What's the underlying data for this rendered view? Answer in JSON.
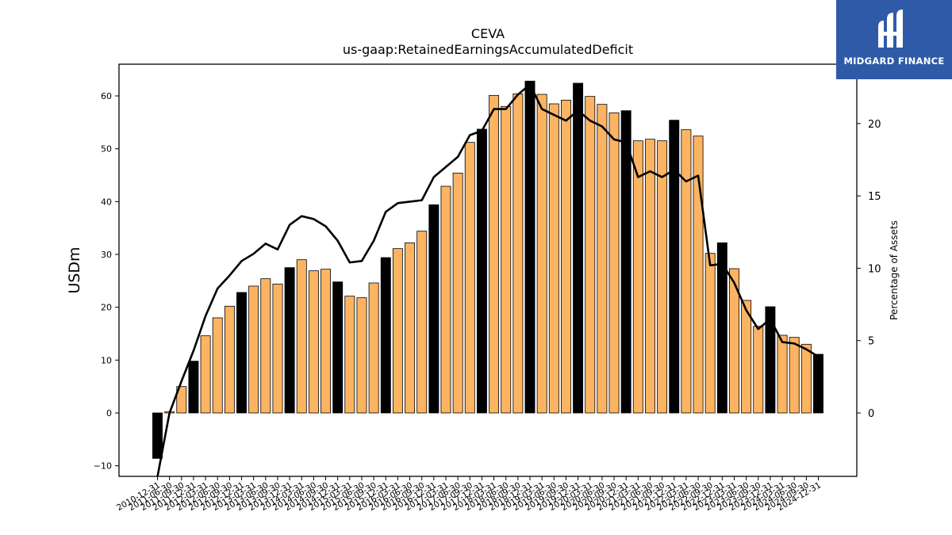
{
  "logo": {
    "text": "MIDGARD FINANCE",
    "icon": "midgard-logo-icon",
    "bg_color": "#2f5aa8"
  },
  "chart_data": {
    "type": "bar",
    "title": "CEVA",
    "subtitle": "us-gaap:RetainedEarningsAccumulatedDeficit",
    "ylabel": "USDm",
    "y2label": "Percentage of Assets",
    "ylim": [
      -12,
      66
    ],
    "y2lim": [
      -4.38,
      24.1
    ],
    "yticks": [
      -10,
      0,
      10,
      20,
      30,
      40,
      50,
      60
    ],
    "y2ticks": [
      0,
      5,
      10,
      15,
      20
    ],
    "colors": {
      "bar": "#fdb462",
      "bar_year_end": "#000000",
      "line": "#000000"
    },
    "categories": [
      "2010-12-31",
      "2011-06-30",
      "2011-09-30",
      "2011-12-31",
      "2012-03-31",
      "2012-06-30",
      "2012-09-30",
      "2012-12-31",
      "2013-03-31",
      "2013-06-30",
      "2013-09-30",
      "2013-12-31",
      "2014-03-31",
      "2014-06-30",
      "2014-09-30",
      "2014-12-31",
      "2015-03-31",
      "2015-06-30",
      "2015-09-30",
      "2015-12-31",
      "2016-03-31",
      "2016-06-30",
      "2016-09-30",
      "2016-12-31",
      "2017-03-31",
      "2017-06-30",
      "2017-09-30",
      "2017-12-31",
      "2018-03-31",
      "2018-06-30",
      "2018-09-30",
      "2018-12-31",
      "2019-03-31",
      "2019-06-30",
      "2019-09-30",
      "2019-12-31",
      "2020-03-31",
      "2020-06-30",
      "2020-09-30",
      "2020-12-31",
      "2021-03-31",
      "2021-06-30",
      "2021-09-30",
      "2021-12-31",
      "2022-03-31",
      "2022-06-30",
      "2022-09-30",
      "2022-12-31",
      "2023-03-31",
      "2023-06-30",
      "2023-09-30",
      "2023-12-31",
      "2024-03-31",
      "2024-06-30",
      "2024-09-30",
      "2024-12-31"
    ],
    "series": [
      {
        "type": "bar",
        "values": [
          -8.6,
          0.2,
          5.0,
          9.8,
          14.6,
          18.0,
          20.2,
          22.8,
          24.0,
          25.4,
          24.4,
          27.5,
          29.0,
          26.9,
          27.2,
          24.8,
          22.1,
          21.8,
          24.6,
          29.4,
          31.1,
          32.2,
          34.4,
          39.4,
          42.9,
          45.4,
          51.2,
          53.7,
          60.1,
          58.0,
          60.4,
          62.8,
          60.3,
          58.5,
          59.2,
          62.4,
          59.9,
          58.4,
          56.8,
          57.2,
          51.5,
          51.8,
          51.5,
          55.4,
          53.6,
          52.4,
          30.2,
          32.2,
          27.3,
          21.3,
          16.4,
          20.1,
          14.7,
          14.3,
          13.0,
          11.1
        ]
      },
      {
        "type": "line",
        "axis": "secondary",
        "values": [
          -4.4,
          0.0,
          2.2,
          4.3,
          6.7,
          8.6,
          9.5,
          10.5,
          11.0,
          11.7,
          11.3,
          13.0,
          13.6,
          13.4,
          12.9,
          11.9,
          10.4,
          10.5,
          11.9,
          13.9,
          14.5,
          14.6,
          14.7,
          16.3,
          17.0,
          17.7,
          19.2,
          19.5,
          21.0,
          21.0,
          22.0,
          22.7,
          21.0,
          20.6,
          20.2,
          20.9,
          20.2,
          19.8,
          18.9,
          18.7,
          16.3,
          16.7,
          16.3,
          16.8,
          16.0,
          16.4,
          10.2,
          10.3,
          9.0,
          7.1,
          5.8,
          6.5,
          4.9,
          4.8,
          4.4,
          3.9
        ]
      }
    ]
  }
}
